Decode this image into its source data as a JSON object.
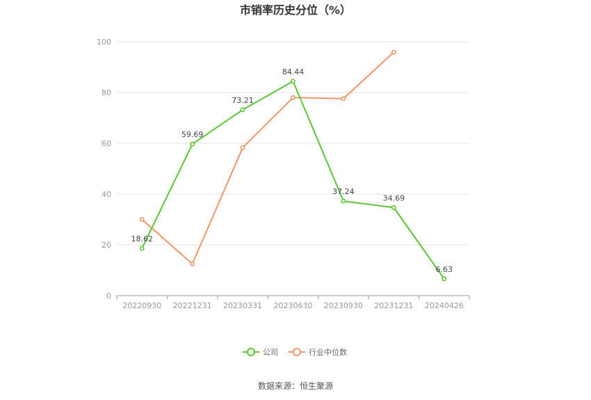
{
  "chart_data": {
    "type": "line",
    "title": "市销率历史分位（%）",
    "categories": [
      "20220930",
      "20221231",
      "20230331",
      "20230630",
      "20230930",
      "20231231",
      "20240426"
    ],
    "ylim": [
      0,
      100
    ],
    "yticks": [
      0,
      20,
      40,
      60,
      80,
      100
    ],
    "grid": true,
    "legend_position": "bottom",
    "series": [
      {
        "name": "公司",
        "color": "#5cc535",
        "values": [
          18.62,
          59.69,
          73.21,
          84.44,
          37.24,
          34.69,
          6.63
        ],
        "labels": [
          "18.62",
          "59.69",
          "73.21",
          "84.44",
          "37.24",
          "34.69",
          "6.63"
        ]
      },
      {
        "name": "行业中位数",
        "color": "#f0956a",
        "values": [
          30.0,
          12.5,
          58.3,
          78.0,
          77.6,
          95.9,
          null
        ]
      }
    ]
  },
  "source_text": "数据来源：恒生聚源"
}
